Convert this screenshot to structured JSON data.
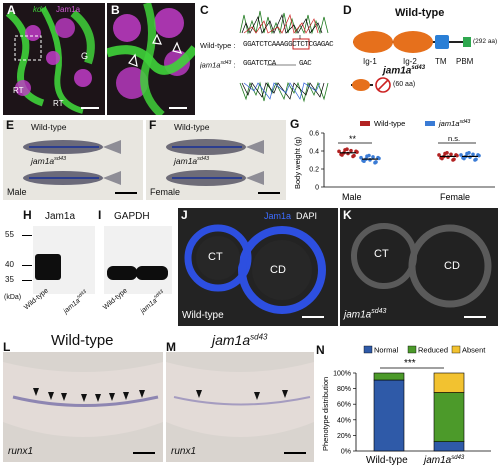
{
  "panels": {
    "A": {
      "label": "A",
      "kdrl": "kdrl",
      "jam1a": "Jam1a",
      "G": "G",
      "RT1": "RT",
      "RT2": "RT"
    },
    "B": {
      "label": "B"
    },
    "C": {
      "label": "C",
      "wt_label": "Wild-type :",
      "wt_seq": "GGATCTCAAAGGCTCTCGAGAC",
      "mut_label": "jam1a",
      "mut_sup": "sd43",
      "mut_label_tail": " :",
      "mut_seq": "GGATCTCA",
      "mut_seq_tail": "GAC"
    },
    "D": {
      "label": "D",
      "title": "Wild-type",
      "ig1": "Ig-1",
      "ig2": "Ig-2",
      "tm": "TM",
      "pbm": "PBM",
      "wt_len": "(292 aa)",
      "mut_title": "jam1a",
      "mut_sup": "sd43",
      "mut_len": "(60 aa)"
    },
    "E": {
      "label": "E",
      "wt": "Wild-type",
      "mut": "jam1a",
      "mut_sup": "sd43",
      "sex": "Male"
    },
    "F": {
      "label": "F",
      "wt": "Wild-type",
      "mut": "jam1a",
      "mut_sup": "sd43",
      "sex": "Female"
    },
    "G": {
      "label": "G",
      "legend_wt": "Wild-type",
      "legend_mut": "jam1a",
      "legend_mut_sup": "sd43",
      "ylabel": "Body weight (g)",
      "sig_male": "**",
      "sig_female": "n.s.",
      "group_male": "Male",
      "group_female": "Female",
      "ticks": [
        "0",
        "0.2",
        "0.4",
        "0.6"
      ]
    },
    "H": {
      "label": "H",
      "title": "Jam1a",
      "markers": [
        "55",
        "40",
        "35"
      ],
      "kda": "(kDa)",
      "lane1": "Wild-type",
      "lane2": "jam1a",
      "lane2_sup": "sd43"
    },
    "I": {
      "label": "I",
      "title": "GAPDH",
      "lane1": "Wild-type",
      "lane2": "jam1a",
      "lane2_sup": "sd43"
    },
    "J": {
      "label": "J",
      "jam": "Jam1a",
      "dapi": "DAPI",
      "CT": "CT",
      "CD": "CD",
      "cap": "Wild-type"
    },
    "K": {
      "label": "K",
      "CT": "CT",
      "CD": "CD",
      "cap": "jam1a",
      "cap_sup": "sd43"
    },
    "L": {
      "label": "L",
      "title": "Wild-type",
      "gene": "runx1"
    },
    "M": {
      "label": "M",
      "title": "jam1a",
      "title_sup": "sd43",
      "gene": "runx1"
    },
    "N": {
      "label": "N",
      "legend": [
        "Normal",
        "Reduced",
        "Absent"
      ],
      "ylabel": "Phenotype distribution",
      "sig": "***",
      "ticks": [
        "0%",
        "20%",
        "40%",
        "60%",
        "80%",
        "100%"
      ],
      "groups": [
        "Wild-type",
        "jam1a"
      ],
      "group2_sup": "sd43"
    }
  },
  "colors": {
    "wt": "#b22222",
    "mut": "#3a7bd5",
    "normal": "#2f5aa8",
    "reduced": "#4c9a2a",
    "absent": "#f2c230"
  },
  "chart_data": [
    {
      "type": "scatter",
      "title": "",
      "ylabel": "Body weight (g)",
      "ylim": [
        0,
        0.6
      ],
      "categories": [
        "Male",
        "Female"
      ],
      "series": [
        {
          "name": "Wild-type",
          "values": [
            0.38,
            0.34
          ]
        },
        {
          "name": "jam1a sd43",
          "values": [
            0.31,
            0.34
          ]
        }
      ],
      "annotations": [
        "**",
        "n.s."
      ]
    },
    {
      "type": "bar",
      "ylabel": "Phenotype distribution",
      "ylim": [
        0,
        100
      ],
      "categories": [
        "Wild-type",
        "jam1a sd43"
      ],
      "series": [
        {
          "name": "Normal",
          "values": [
            91,
            12
          ]
        },
        {
          "name": "Reduced",
          "values": [
            9,
            63
          ]
        },
        {
          "name": "Absent",
          "values": [
            0,
            25
          ]
        }
      ],
      "annotations": [
        "***"
      ]
    }
  ]
}
